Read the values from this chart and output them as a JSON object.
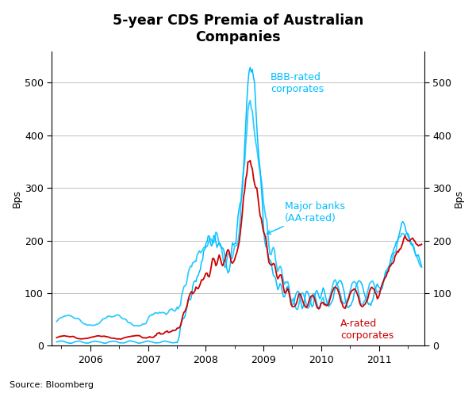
{
  "title": "5-year CDS Premia of Australian\nCompanies",
  "ylabel_left": "Bps",
  "ylabel_right": "Bps",
  "source": "Source: Bloomberg",
  "ylim": [
    0,
    560
  ],
  "yticks": [
    0,
    100,
    200,
    300,
    400,
    500
  ],
  "color_bbb": "#00BFFF",
  "color_banks": "#00BFFF",
  "color_a_rated": "#CC0000",
  "annotation_bbb": "BBB-rated\ncorporates",
  "annotation_banks": "Major banks\n(AA-rated)",
  "annotation_a": "A-rated\ncorporates",
  "background_color": "#ffffff",
  "plot_background": "#ffffff",
  "grid_color": "#c0c0c0"
}
